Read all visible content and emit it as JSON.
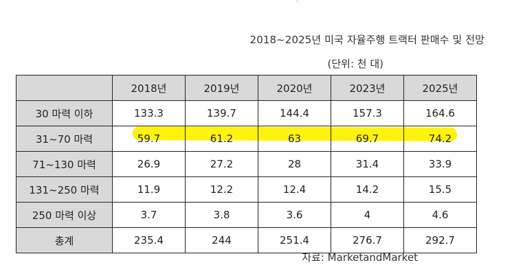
{
  "title": "2018~2025년 미국 자율주행 트랙터 판매수 및 전망",
  "unit": "(단위: 천 대)",
  "source": "자료: MarketandMarket",
  "table": {
    "years": [
      "2018년",
      "2019년",
      "2020년",
      "2023년",
      "2025년"
    ],
    "rows": [
      {
        "label": "30 마력 이하",
        "values": [
          "133.3",
          "139.7",
          "144.4",
          "157.3",
          "164.6"
        ]
      },
      {
        "label": "31~70 마력",
        "values": [
          "59.7",
          "61.2",
          "63",
          "69.7",
          "74.2"
        ]
      },
      {
        "label": "71~130 마력",
        "values": [
          "26.9",
          "27.2",
          "28",
          "31.4",
          "33.9"
        ]
      },
      {
        "label": "131~250 마력",
        "values": [
          "11.9",
          "12.2",
          "12.4",
          "14.2",
          "15.5"
        ]
      },
      {
        "label": "250 마력 이상",
        "values": [
          "3.7",
          "3.8",
          "3.6",
          "4",
          "4.6"
        ]
      },
      {
        "label": "총계",
        "values": [
          "235.4",
          "244",
          "251.4",
          "276.7",
          "292.7"
        ]
      }
    ]
  },
  "colors": {
    "header_bg": "#d9d9d9",
    "highlight": "#fff200",
    "border": "#222222"
  }
}
